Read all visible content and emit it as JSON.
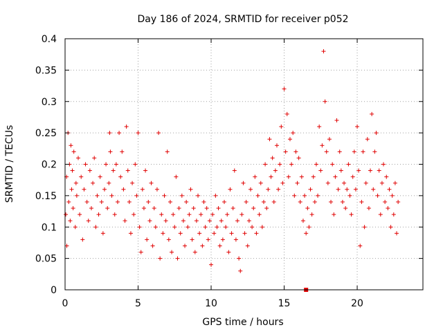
{
  "chart_data": {
    "type": "scatter",
    "title": "Day 186 of 2024, SRMTID for receiver p052",
    "xlabel": "GPS time / hours",
    "ylabel": "SRMTID / TECUs",
    "xlim": [
      0,
      24.5
    ],
    "ylim": [
      0,
      0.4
    ],
    "xticks": [
      0,
      5,
      10,
      15,
      20
    ],
    "xtick_labels": [
      "0",
      "5",
      "10",
      "15",
      "20"
    ],
    "yticks": [
      0,
      0.05,
      0.1,
      0.15,
      0.2,
      0.25,
      0.3,
      0.35,
      0.4
    ],
    "ytick_labels": [
      "0",
      "0.05",
      "0.1",
      "0.15",
      "0.2",
      "0.25",
      "0.3",
      "0.35",
      "0.4"
    ],
    "grid": true,
    "marker": "plus",
    "color": "#e00000",
    "special_marker": {
      "x": 16.5,
      "y": 0.0,
      "shape": "square"
    },
    "series": [
      {
        "name": "SRMTID",
        "points": [
          [
            0.05,
            0.12
          ],
          [
            0.1,
            0.18
          ],
          [
            0.12,
            0.07
          ],
          [
            0.2,
            0.25
          ],
          [
            0.25,
            0.14
          ],
          [
            0.3,
            0.2
          ],
          [
            0.35,
            0.11
          ],
          [
            0.4,
            0.23
          ],
          [
            0.45,
            0.16
          ],
          [
            0.5,
            0.19
          ],
          [
            0.55,
            0.13
          ],
          [
            0.6,
            0.22
          ],
          [
            0.7,
            0.1
          ],
          [
            0.75,
            0.17
          ],
          [
            0.8,
            0.15
          ],
          [
            0.9,
            0.21
          ],
          [
            1.0,
            0.12
          ],
          [
            1.1,
            0.18
          ],
          [
            1.2,
            0.08
          ],
          [
            1.3,
            0.16
          ],
          [
            1.4,
            0.2
          ],
          [
            1.5,
            0.14
          ],
          [
            1.6,
            0.11
          ],
          [
            1.7,
            0.19
          ],
          [
            1.8,
            0.13
          ],
          [
            1.9,
            0.17
          ],
          [
            2.0,
            0.21
          ],
          [
            2.1,
            0.1
          ],
          [
            2.2,
            0.15
          ],
          [
            2.3,
            0.12
          ],
          [
            2.4,
            0.18
          ],
          [
            2.5,
            0.14
          ],
          [
            2.6,
            0.09
          ],
          [
            2.7,
            0.16
          ],
          [
            2.8,
            0.2
          ],
          [
            2.9,
            0.13
          ],
          [
            3.0,
            0.17
          ],
          [
            3.05,
            0.25
          ],
          [
            3.1,
            0.22
          ],
          [
            3.2,
            0.15
          ],
          [
            3.3,
            0.19
          ],
          [
            3.4,
            0.12
          ],
          [
            3.5,
            0.2
          ],
          [
            3.6,
            0.14
          ],
          [
            3.7,
            0.25
          ],
          [
            3.8,
            0.18
          ],
          [
            3.9,
            0.22
          ],
          [
            4.0,
            0.16
          ],
          [
            4.1,
            0.11
          ],
          [
            4.2,
            0.26
          ],
          [
            4.3,
            0.19
          ],
          [
            4.4,
            0.14
          ],
          [
            4.5,
            0.09
          ],
          [
            4.6,
            0.17
          ],
          [
            4.7,
            0.12
          ],
          [
            4.8,
            0.2
          ],
          [
            4.9,
            0.15
          ],
          [
            5.0,
            0.25
          ],
          [
            5.1,
            0.1
          ],
          [
            5.2,
            0.06
          ],
          [
            5.3,
            0.16
          ],
          [
            5.4,
            0.13
          ],
          [
            5.5,
            0.19
          ],
          [
            5.6,
            0.08
          ],
          [
            5.7,
            0.14
          ],
          [
            5.8,
            0.11
          ],
          [
            5.9,
            0.17
          ],
          [
            6.0,
            0.07
          ],
          [
            6.1,
            0.13
          ],
          [
            6.2,
            0.1
          ],
          [
            6.3,
            0.16
          ],
          [
            6.4,
            0.25
          ],
          [
            6.5,
            0.05
          ],
          [
            6.6,
            0.12
          ],
          [
            6.7,
            0.09
          ],
          [
            6.8,
            0.15
          ],
          [
            6.9,
            0.11
          ],
          [
            7.0,
            0.22
          ],
          [
            7.1,
            0.08
          ],
          [
            7.2,
            0.14
          ],
          [
            7.3,
            0.06
          ],
          [
            7.4,
            0.12
          ],
          [
            7.5,
            0.1
          ],
          [
            7.6,
            0.18
          ],
          [
            7.7,
            0.05
          ],
          [
            7.8,
            0.13
          ],
          [
            7.9,
            0.09
          ],
          [
            8.0,
            0.15
          ],
          [
            8.1,
            0.11
          ],
          [
            8.2,
            0.07
          ],
          [
            8.3,
            0.14
          ],
          [
            8.4,
            0.1
          ],
          [
            8.5,
            0.12
          ],
          [
            8.6,
            0.16
          ],
          [
            8.7,
            0.08
          ],
          [
            8.8,
            0.13
          ],
          [
            8.9,
            0.06
          ],
          [
            9.0,
            0.11
          ],
          [
            9.1,
            0.15
          ],
          [
            9.2,
            0.09
          ],
          [
            9.3,
            0.12
          ],
          [
            9.4,
            0.07
          ],
          [
            9.5,
            0.14
          ],
          [
            9.6,
            0.1
          ],
          [
            9.7,
            0.13
          ],
          [
            9.8,
            0.08
          ],
          [
            9.9,
            0.11
          ],
          [
            10.0,
            0.04
          ],
          [
            10.1,
            0.12
          ],
          [
            10.2,
            0.09
          ],
          [
            10.3,
            0.15
          ],
          [
            10.4,
            0.1
          ],
          [
            10.5,
            0.13
          ],
          [
            10.6,
            0.07
          ],
          [
            10.7,
            0.11
          ],
          [
            10.8,
            0.08
          ],
          [
            10.9,
            0.14
          ],
          [
            11.0,
            0.1
          ],
          [
            11.1,
            0.12
          ],
          [
            11.2,
            0.06
          ],
          [
            11.3,
            0.16
          ],
          [
            11.4,
            0.09
          ],
          [
            11.5,
            0.13
          ],
          [
            11.6,
            0.19
          ],
          [
            11.7,
            0.08
          ],
          [
            11.8,
            0.11
          ],
          [
            11.9,
            0.05
          ],
          [
            12.0,
            0.03
          ],
          [
            12.1,
            0.12
          ],
          [
            12.2,
            0.17
          ],
          [
            12.3,
            0.09
          ],
          [
            12.4,
            0.14
          ],
          [
            12.5,
            0.07
          ],
          [
            12.6,
            0.11
          ],
          [
            12.7,
            0.16
          ],
          [
            12.8,
            0.1
          ],
          [
            12.9,
            0.13
          ],
          [
            13.0,
            0.18
          ],
          [
            13.1,
            0.09
          ],
          [
            13.2,
            0.15
          ],
          [
            13.3,
            0.12
          ],
          [
            13.4,
            0.17
          ],
          [
            13.5,
            0.1
          ],
          [
            13.6,
            0.14
          ],
          [
            13.7,
            0.2
          ],
          [
            13.8,
            0.13
          ],
          [
            13.9,
            0.16
          ],
          [
            14.0,
            0.24
          ],
          [
            14.1,
            0.18
          ],
          [
            14.2,
            0.21
          ],
          [
            14.3,
            0.14
          ],
          [
            14.4,
            0.19
          ],
          [
            14.5,
            0.23
          ],
          [
            14.6,
            0.16
          ],
          [
            14.7,
            0.2
          ],
          [
            14.8,
            0.26
          ],
          [
            14.9,
            0.17
          ],
          [
            15.0,
            0.32
          ],
          [
            15.1,
            0.22
          ],
          [
            15.2,
            0.28
          ],
          [
            15.3,
            0.18
          ],
          [
            15.4,
            0.24
          ],
          [
            15.5,
            0.2
          ],
          [
            15.6,
            0.25
          ],
          [
            15.7,
            0.15
          ],
          [
            15.8,
            0.22
          ],
          [
            15.9,
            0.17
          ],
          [
            16.0,
            0.21
          ],
          [
            16.1,
            0.14
          ],
          [
            16.2,
            0.18
          ],
          [
            16.3,
            0.11
          ],
          [
            16.4,
            0.15
          ],
          [
            16.5,
            0.09
          ],
          [
            16.6,
            0.13
          ],
          [
            16.7,
            0.1
          ],
          [
            16.8,
            0.16
          ],
          [
            16.9,
            0.12
          ],
          [
            17.0,
            0.18
          ],
          [
            17.1,
            0.14
          ],
          [
            17.2,
            0.2
          ],
          [
            17.3,
            0.15
          ],
          [
            17.4,
            0.26
          ],
          [
            17.5,
            0.19
          ],
          [
            17.6,
            0.23
          ],
          [
            17.7,
            0.38
          ],
          [
            17.8,
            0.3
          ],
          [
            17.9,
            0.22
          ],
          [
            18.0,
            0.17
          ],
          [
            18.1,
            0.24
          ],
          [
            18.2,
            0.14
          ],
          [
            18.3,
            0.2
          ],
          [
            18.4,
            0.12
          ],
          [
            18.5,
            0.18
          ],
          [
            18.6,
            0.27
          ],
          [
            18.7,
            0.16
          ],
          [
            18.8,
            0.22
          ],
          [
            18.9,
            0.19
          ],
          [
            19.0,
            0.14
          ],
          [
            19.1,
            0.17
          ],
          [
            19.2,
            0.13
          ],
          [
            19.3,
            0.16
          ],
          [
            19.4,
            0.2
          ],
          [
            19.5,
            0.15
          ],
          [
            19.6,
            0.12
          ],
          [
            19.7,
            0.18
          ],
          [
            19.8,
            0.22
          ],
          [
            19.9,
            0.16
          ],
          [
            20.0,
            0.26
          ],
          [
            20.1,
            0.19
          ],
          [
            20.2,
            0.07
          ],
          [
            20.3,
            0.14
          ],
          [
            20.4,
            0.22
          ],
          [
            20.5,
            0.1
          ],
          [
            20.6,
            0.17
          ],
          [
            20.7,
            0.24
          ],
          [
            20.8,
            0.13
          ],
          [
            20.9,
            0.19
          ],
          [
            21.0,
            0.28
          ],
          [
            21.1,
            0.16
          ],
          [
            21.2,
            0.22
          ],
          [
            21.3,
            0.25
          ],
          [
            21.4,
            0.15
          ],
          [
            21.5,
            0.19
          ],
          [
            21.6,
            0.12
          ],
          [
            21.7,
            0.17
          ],
          [
            21.8,
            0.2
          ],
          [
            21.9,
            0.14
          ],
          [
            22.0,
            0.18
          ],
          [
            22.1,
            0.13
          ],
          [
            22.2,
            0.16
          ],
          [
            22.3,
            0.1
          ],
          [
            22.4,
            0.15
          ],
          [
            22.5,
            0.12
          ],
          [
            22.6,
            0.17
          ],
          [
            22.7,
            0.09
          ],
          [
            22.8,
            0.14
          ]
        ]
      }
    ]
  }
}
